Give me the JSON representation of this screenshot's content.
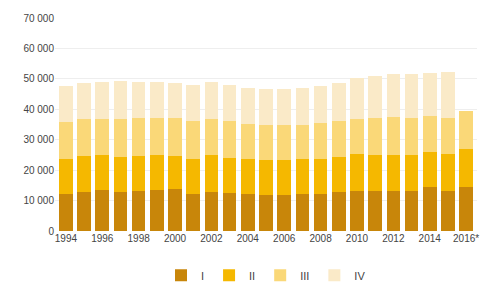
{
  "chart_data": {
    "type": "bar",
    "stacked": true,
    "categories": [
      "1994",
      null,
      "1996",
      null,
      "1998",
      null,
      "2000",
      null,
      "2002",
      null,
      "2004",
      null,
      "2006",
      null,
      "2008",
      null,
      "2010",
      null,
      "2012",
      null,
      "2014",
      null,
      "2016*"
    ],
    "series": [
      {
        "name": "I",
        "color": "#c8860a",
        "values": [
          12200,
          12700,
          13400,
          12900,
          13100,
          13600,
          13800,
          12100,
          12900,
          12500,
          12100,
          11900,
          11900,
          12000,
          12100,
          12700,
          13300,
          13100,
          13100,
          13100,
          14300,
          13300,
          14500
        ]
      },
      {
        "name": "II",
        "color": "#f5b800",
        "values": [
          11500,
          12000,
          11500,
          11500,
          11500,
          11500,
          11000,
          11500,
          12000,
          11500,
          11500,
          11500,
          11500,
          11500,
          11500,
          11500,
          12000,
          12000,
          12000,
          12000,
          11500,
          12000,
          12500
        ]
      },
      {
        "name": "III",
        "color": "#fad878",
        "values": [
          12000,
          12000,
          12000,
          12500,
          12500,
          12000,
          12500,
          12500,
          12000,
          12000,
          11500,
          11500,
          11500,
          11500,
          12000,
          12000,
          11500,
          12000,
          12500,
          12000,
          12000,
          12000,
          12500
        ]
      },
      {
        "name": "IV",
        "color": "#faeac8",
        "values": [
          12000,
          12000,
          12000,
          12500,
          12000,
          11800,
          11500,
          12000,
          12000,
          12000,
          11800,
          11800,
          11800,
          12000,
          12000,
          12500,
          13500,
          14000,
          14000,
          14500,
          14000,
          15000,
          0
        ]
      }
    ],
    "ylim": [
      0,
      70000
    ],
    "yticks": [
      0,
      {
        "value": 10000,
        "label": "10 000"
      },
      {
        "value": 20000,
        "label": "20 000"
      },
      {
        "value": 30000,
        "label": "30 000"
      },
      {
        "value": 40000,
        "label": "40 000"
      },
      {
        "value": 50000,
        "label": "50 000"
      },
      {
        "value": 60000,
        "label": "60 000"
      },
      {
        "value": 70000,
        "label": "70 000"
      }
    ],
    "grid": true,
    "legend": "bottom"
  }
}
